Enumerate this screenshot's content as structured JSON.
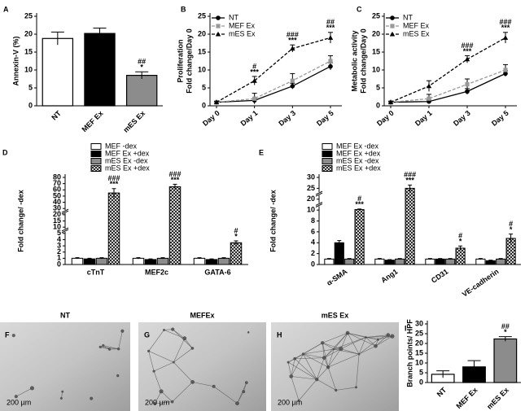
{
  "chart_data": [
    {
      "type": "bar",
      "panel": "A",
      "y_label": [
        "Annexin-V (%)"
      ],
      "categories": [
        "NT",
        "MEF Ex",
        "mES Ex"
      ],
      "values": [
        18.8,
        20.2,
        8.5
      ],
      "errors": [
        1.8,
        1.5,
        1.0
      ],
      "colors": [
        "#ffffff",
        "#000000",
        "#8c8c8c"
      ],
      "ylim": [
        0,
        25
      ],
      "yticks": [
        0,
        5,
        10,
        15,
        20,
        25
      ],
      "annotations": [
        null,
        null,
        [
          "##",
          "*"
        ]
      ]
    },
    {
      "type": "line",
      "panel": "B",
      "y_label": [
        "Proliferation",
        "Fold change/Day 0"
      ],
      "categories": [
        "Day 0",
        "Day 1",
        "Day 3",
        "Day 5"
      ],
      "ylim": [
        0,
        25
      ],
      "yticks": [
        0,
        5,
        10,
        15,
        20,
        25
      ],
      "series": [
        {
          "name": "NT",
          "color": "#000000",
          "line_style": "solid",
          "marker": "circle",
          "values": [
            1,
            1.5,
            5.5,
            11
          ],
          "errors": [
            0.2,
            0.5,
            0.8,
            1.0
          ]
        },
        {
          "name": "MEF Ex",
          "color": "#999999",
          "line_style": "dashed",
          "marker": "square",
          "values": [
            1,
            2,
            7,
            12.5
          ],
          "errors": [
            0.2,
            1.5,
            2.0,
            1.5
          ]
        },
        {
          "name": "mES Ex",
          "color": "#000000",
          "line_style": "dashed",
          "marker": "triangle",
          "values": [
            1,
            7,
            16,
            19
          ],
          "errors": [
            0.2,
            1.2,
            1.0,
            1.5
          ]
        }
      ],
      "annotations": [
        null,
        [
          "#",
          "***"
        ],
        [
          "###",
          "***"
        ],
        [
          "##",
          "***"
        ]
      ]
    },
    {
      "type": "line",
      "panel": "C",
      "y_label": [
        "Metabolic activity",
        "Fold change/Day 0"
      ],
      "categories": [
        "Day 0",
        "Day 1",
        "Day 3",
        "Day 5"
      ],
      "ylim": [
        0,
        25
      ],
      "yticks": [
        0,
        5,
        10,
        15,
        20,
        25
      ],
      "series": [
        {
          "name": "NT",
          "color": "#000000",
          "line_style": "solid",
          "marker": "circle",
          "values": [
            1,
            1.2,
            4,
            9
          ],
          "errors": [
            0.2,
            0.4,
            0.8,
            0.8
          ]
        },
        {
          "name": "MEF Ex",
          "color": "#999999",
          "line_style": "dashed",
          "marker": "square",
          "values": [
            1,
            2,
            6,
            10
          ],
          "errors": [
            0.2,
            1.2,
            1.5,
            1.5
          ]
        },
        {
          "name": "mES Ex",
          "color": "#000000",
          "line_style": "dashed",
          "marker": "triangle",
          "values": [
            1,
            5.5,
            13,
            19
          ],
          "errors": [
            0.2,
            1.5,
            1.0,
            1.5
          ]
        }
      ],
      "annotations": [
        null,
        null,
        [
          "###",
          "***"
        ],
        [
          "###",
          "***"
        ]
      ]
    },
    {
      "type": "grouped_bar",
      "panel": "D",
      "y_label": [
        "Fold change/ -dex"
      ],
      "broken_axis": true,
      "categories": [
        "cTnT",
        "MEF2c",
        "GATA-6"
      ],
      "yticks": [
        0,
        1,
        2,
        3,
        4,
        5,
        10,
        15,
        20,
        30,
        40,
        50,
        60,
        70,
        80
      ],
      "series": [
        {
          "name": "MEF -dex",
          "color": "#ffffff",
          "values": [
            1,
            1,
            1
          ],
          "errors": [
            0.1,
            0.1,
            0.1
          ]
        },
        {
          "name": "MEF Ex +dex",
          "color": "#000000",
          "values": [
            0.9,
            0.8,
            0.8
          ],
          "errors": [
            0.1,
            0.1,
            0.1
          ]
        },
        {
          "name": "mES Ex -dex",
          "color": "#8c8c8c",
          "values": [
            1,
            1,
            1
          ],
          "errors": [
            0.1,
            0.1,
            0.1
          ]
        },
        {
          "name": "mES Ex +dex",
          "color": "#ffffff",
          "pattern": "crosshatch",
          "values": [
            55,
            65,
            3.5
          ],
          "errors": [
            7,
            4,
            0.3
          ]
        }
      ],
      "annotations": [
        [
          "###",
          "***"
        ],
        [
          "###",
          "***"
        ],
        [
          "#",
          "*"
        ]
      ]
    },
    {
      "type": "grouped_bar",
      "panel": "E",
      "y_label": [
        "Fold change/ -dex"
      ],
      "broken_axis": true,
      "categories": [
        "α-SMA",
        "Ang1",
        "CD31",
        "VE-cadherin"
      ],
      "yticks": [
        0,
        2,
        4,
        6,
        8,
        10,
        20,
        25,
        30
      ],
      "series": [
        {
          "name": "MEF Ex -dex",
          "color": "#ffffff",
          "values": [
            1,
            1,
            1,
            1
          ],
          "errors": [
            0.1,
            0.1,
            0.1,
            0.1
          ]
        },
        {
          "name": "MEF Ex +dex",
          "color": "#000000",
          "values": [
            4,
            0.8,
            1,
            0.7
          ],
          "errors": [
            0.4,
            0.1,
            0.1,
            0.1
          ]
        },
        {
          "name": "mES Ex -dex",
          "color": "#8c8c8c",
          "values": [
            1,
            1,
            1,
            1
          ],
          "errors": [
            0.1,
            0.1,
            0.1,
            0.1
          ]
        },
        {
          "name": "mES Ex +dex",
          "color": "#ffffff",
          "pattern": "crosshatch",
          "values": [
            10.5,
            25,
            3,
            4.8
          ],
          "errors": [
            0.5,
            1.5,
            0.4,
            0.8
          ]
        }
      ],
      "annotations": [
        [
          "#",
          "***"
        ],
        [
          "###",
          "***"
        ],
        [
          "#",
          "*"
        ],
        [
          "#",
          "*"
        ]
      ]
    },
    {
      "type": "image",
      "panel": "F",
      "title": "NT",
      "scale_label": "200 µm"
    },
    {
      "type": "image",
      "panel": "G",
      "title": "MEFEx",
      "scale_label": "200 µm"
    },
    {
      "type": "image",
      "panel": "H",
      "title": "mES Ex",
      "scale_label": "200 µm"
    },
    {
      "type": "bar",
      "panel": "I",
      "y_label": [
        "Branch points/ HPF"
      ],
      "categories": [
        "NT",
        "MEF Ex",
        "mES Ex"
      ],
      "values": [
        4.2,
        8,
        22.3
      ],
      "errors": [
        1.8,
        3.2,
        1.2
      ],
      "colors": [
        "#ffffff",
        "#000000",
        "#8c8c8c"
      ],
      "ylim": [
        0,
        30
      ],
      "yticks": [
        0,
        5,
        10,
        15,
        20,
        25,
        30
      ],
      "annotations": [
        null,
        null,
        [
          "##",
          "*"
        ]
      ]
    }
  ]
}
